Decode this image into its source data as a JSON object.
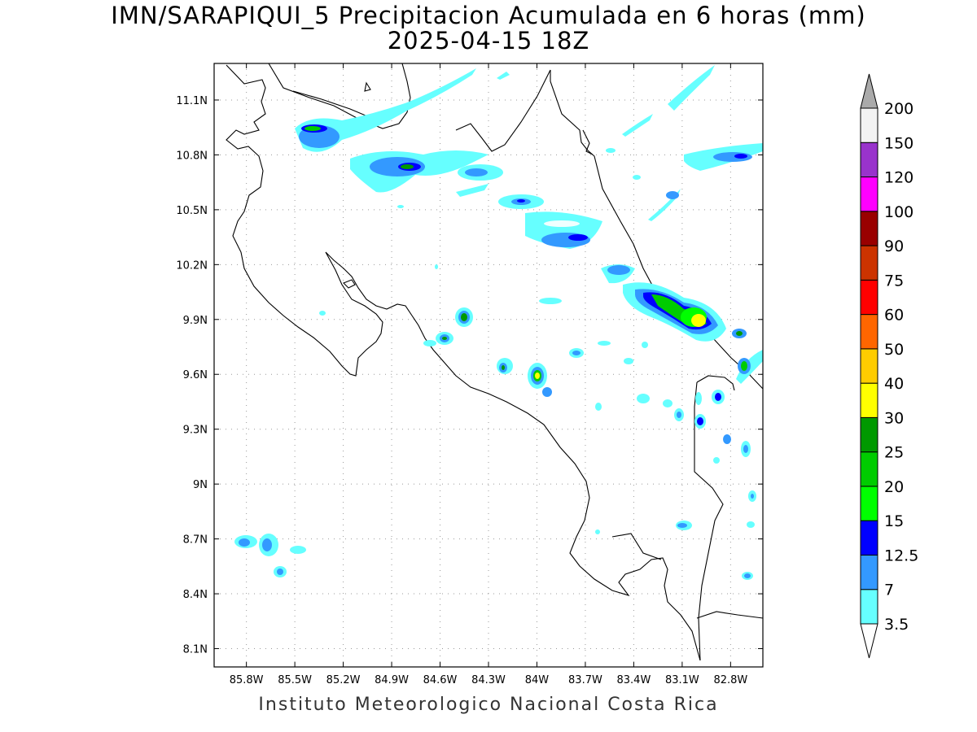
{
  "title": {
    "line1": "IMN/SARAPIQUI_5 Precipitacion Acumulada en 6 horas (mm)",
    "line2": "2025-04-15 18Z"
  },
  "footer": "Instituto Meteorologico Nacional Costa Rica",
  "map": {
    "lon_range": [
      -86.0,
      -82.6
    ],
    "lat_range": [
      8.0,
      11.3
    ],
    "x_ticks": [
      "85.8W",
      "85.5W",
      "85.2W",
      "84.9W",
      "84.6W",
      "84.3W",
      "84W",
      "83.7W",
      "83.4W",
      "83.1W",
      "82.8W"
    ],
    "y_ticks": [
      "11.1N",
      "10.8N",
      "10.5N",
      "10.2N",
      "9.9N",
      "9.6N",
      "9.3N",
      "9N",
      "8.7N",
      "8.4N",
      "8.1N"
    ],
    "grid": "dotted",
    "colorbar": {
      "labels": [
        "3.5",
        "7",
        "12.5",
        "15",
        "20",
        "25",
        "30",
        "40",
        "50",
        "60",
        "75",
        "90",
        "100",
        "120",
        "150",
        "200"
      ],
      "colors": [
        "#66ffff",
        "#3399ff",
        "#0000ff",
        "#00ff00",
        "#00cc00",
        "#009900",
        "#ffff00",
        "#ffcc00",
        "#ff6600",
        "#ff0000",
        "#cc3300",
        "#990000",
        "#ff00ff",
        "#9933cc",
        "#f3f3f3",
        "#aaaaaa"
      ]
    }
  }
}
